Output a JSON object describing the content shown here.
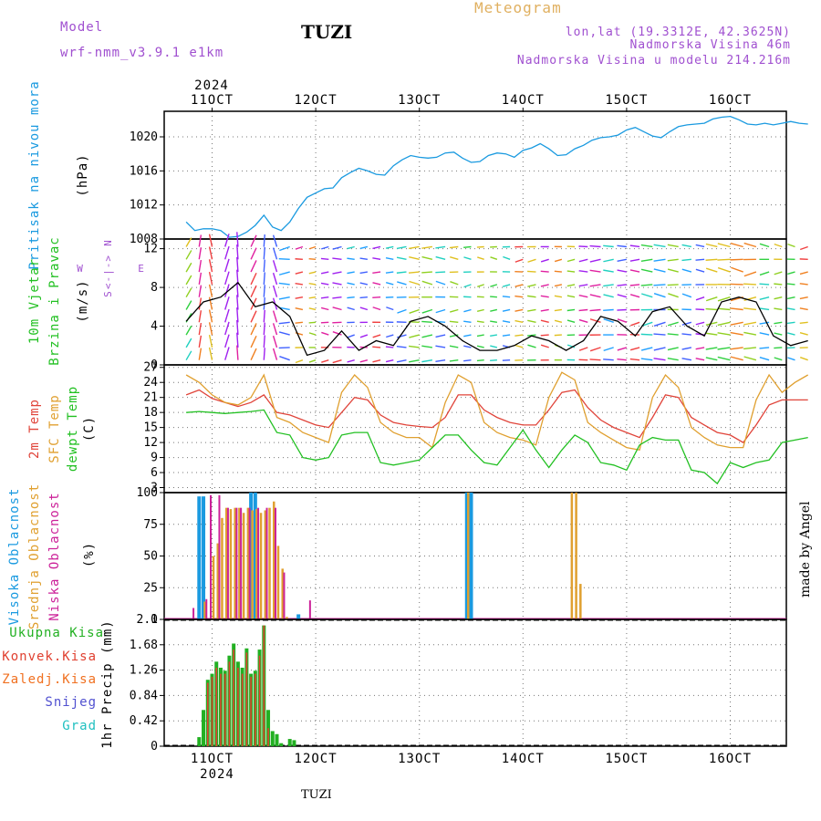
{
  "header": {
    "model_label": "Model",
    "model_name": "wrf-nmm_v3.9.1 e1km",
    "station": "TUZI",
    "meteogram": "Meteogram",
    "lonlat": "lon,lat (19.3312E, 42.3625N)",
    "alt": "Nadmorska Visina 46m",
    "alt_model": "Nadmorska Visina u modelu 214.216m",
    "footer_station": "TUZI",
    "watermark": "made by Angel"
  },
  "colors": {
    "pressure": "#1a9ae0",
    "temp2m": "#e0443a",
    "sfc": "#e0a030",
    "dew": "#22c022",
    "high": "#1a9ae0",
    "mid": "#e0a030",
    "low": "#cc2299",
    "total_precip": "#22b022",
    "conv_precip": "#e04030",
    "frozen": "#f07020",
    "snow": "#5050d0",
    "graupel": "#20c0c0",
    "model_label": "#a050d0"
  },
  "axis": {
    "year_top": "2024",
    "year_bottom": "2024",
    "date_labels": [
      "11OCT",
      "12OCT",
      "13OCT",
      "14OCT",
      "15OCT",
      "16OCT"
    ]
  },
  "panels": {
    "pressure": {
      "label": "Pritisak na nivou mora",
      "unit": "(hPa)",
      "ticks": [
        "1008",
        "1012",
        "1016",
        "1020"
      ]
    },
    "wind": {
      "label1": "10m Vjetar",
      "label2": "Brzina i Pravac",
      "unit": "(m/s)",
      "compass_w": "W",
      "compass_arrow": "<-|->",
      "compass_e": "E",
      "compass_n": "N",
      "compass_s": "S",
      "ticks": [
        "0",
        "4",
        "8",
        "12"
      ]
    },
    "temp": {
      "label_t2m": "2m Temp",
      "label_sfc": "SFC Temp",
      "label_dew": "dewpt Temp",
      "unit": "(C)",
      "ticks": [
        "3",
        "6",
        "9",
        "12",
        "15",
        "18",
        "21",
        "24",
        "27"
      ]
    },
    "cloud": {
      "label_high": "Visoka Oblacnost",
      "label_mid": "Srednja Oblacnost",
      "label_low": "Niska Oblacnost",
      "unit": "(%)",
      "ticks": [
        "0",
        "25",
        "50",
        "75",
        "100"
      ]
    },
    "precip": {
      "label_total": "Ukupna Kisa",
      "label_conv": "Konvek.Kisa",
      "label_frozen": "Zaledj.Kisa",
      "label_snow": "Snijeg",
      "label_grad": "Grad",
      "ylabel": "1hr Precip (mm)",
      "ticks": [
        "0",
        "0.42",
        "0.84",
        "1.26",
        "1.68",
        "2.1"
      ]
    }
  },
  "chart_data": [
    {
      "type": "line",
      "name": "pressure",
      "ylim": [
        1008,
        1023
      ],
      "xlim": [
        0,
        144
      ],
      "x": [
        0,
        2,
        4,
        6,
        8,
        10,
        12,
        14,
        16,
        18,
        20,
        22,
        24,
        26,
        28,
        30,
        32,
        34,
        36,
        38,
        40,
        42,
        44,
        46,
        48,
        50,
        52,
        54,
        56,
        58,
        60,
        62,
        64,
        66,
        68,
        70,
        72,
        74,
        76,
        78,
        80,
        82,
        84,
        86,
        88,
        90,
        92,
        94,
        96,
        98,
        100,
        102,
        104,
        106,
        108,
        110,
        112,
        114,
        116,
        118,
        120,
        122,
        124,
        126,
        128,
        130,
        132,
        134,
        136,
        138,
        140,
        142,
        144
      ],
      "values": [
        1010.0,
        1009.0,
        1009.2,
        1009.2,
        1009.0,
        1008.2,
        1008.3,
        1008.8,
        1009.6,
        1010.8,
        1009.4,
        1009.0,
        1010.0,
        1011.6,
        1012.9,
        1013.4,
        1013.9,
        1014.0,
        1015.2,
        1015.8,
        1016.3,
        1016.0,
        1015.6,
        1015.5,
        1016.6,
        1017.3,
        1017.8,
        1017.6,
        1017.5,
        1017.6,
        1018.1,
        1018.2,
        1017.5,
        1017.0,
        1017.1,
        1017.8,
        1018.1,
        1018.0,
        1017.6,
        1018.4,
        1018.7,
        1019.2,
        1018.6,
        1017.8,
        1017.9,
        1018.6,
        1019.0,
        1019.6,
        1019.9,
        1020.0,
        1020.2,
        1020.8,
        1021.1,
        1020.6,
        1020.1,
        1019.9,
        1020.6,
        1021.2,
        1021.4,
        1021.5,
        1021.6,
        1022.1,
        1022.3,
        1022.4,
        1022.0,
        1021.5,
        1021.4,
        1021.6,
        1021.4,
        1021.6,
        1021.8,
        1021.6,
        1021.5
      ]
    },
    {
      "type": "line",
      "name": "wind",
      "ylim": [
        0,
        13
      ],
      "xlim": [
        0,
        144
      ],
      "x": [
        0,
        4,
        8,
        12,
        16,
        20,
        24,
        28,
        32,
        36,
        40,
        44,
        48,
        52,
        56,
        60,
        64,
        68,
        72,
        76,
        80,
        84,
        88,
        92,
        96,
        100,
        104,
        108,
        112,
        116,
        120,
        124,
        128,
        132,
        136,
        140,
        144
      ],
      "values": [
        4.5,
        6.5,
        7.0,
        8.5,
        6.0,
        6.5,
        5.0,
        1.0,
        1.5,
        3.5,
        1.5,
        2.5,
        2.0,
        4.5,
        5.0,
        4.0,
        2.5,
        1.5,
        1.5,
        2.0,
        3.0,
        2.5,
        1.5,
        2.5,
        5.0,
        4.5,
        3.0,
        5.5,
        6.0,
        4.0,
        3.0,
        6.5,
        7.0,
        6.5,
        3.0,
        2.0,
        2.5
      ]
    },
    {
      "type": "line",
      "name": "temperature",
      "ylim": [
        2,
        27.5
      ],
      "xlim": [
        0,
        144
      ],
      "x": [
        0,
        3,
        6,
        9,
        12,
        15,
        18,
        21,
        24,
        27,
        30,
        33,
        36,
        39,
        42,
        45,
        48,
        51,
        54,
        57,
        60,
        63,
        66,
        69,
        72,
        75,
        78,
        81,
        84,
        87,
        90,
        93,
        96,
        99,
        102,
        105,
        108,
        111,
        114,
        117,
        120,
        123,
        126,
        129,
        132,
        135,
        138,
        141,
        144
      ],
      "series": [
        {
          "name": "2m Temp",
          "values": [
            21.5,
            22.5,
            20.8,
            20.0,
            19.2,
            20.0,
            21.5,
            18.0,
            17.5,
            16.5,
            15.5,
            15.0,
            18.0,
            21.0,
            20.5,
            17.5,
            16.0,
            15.5,
            15.2,
            15.0,
            17.0,
            21.5,
            21.5,
            18.5,
            17.0,
            16.0,
            15.5,
            15.5,
            18.5,
            22.0,
            22.5,
            19.0,
            16.5,
            15.0,
            14.0,
            13.0,
            17.0,
            21.5,
            21.0,
            17.0,
            15.5,
            14.0,
            13.5,
            12.0,
            15.5,
            19.5,
            20.5,
            20.5,
            20.5
          ]
        },
        {
          "name": "SFC Temp",
          "values": [
            25.5,
            24.0,
            21.5,
            20.0,
            19.5,
            21.0,
            25.5,
            17.0,
            16.0,
            14.0,
            13.0,
            12.0,
            22.0,
            25.5,
            23.0,
            16.0,
            14.0,
            13.0,
            13.0,
            11.0,
            20.0,
            25.5,
            24.0,
            16.0,
            14.0,
            13.0,
            12.5,
            11.5,
            21.0,
            26.0,
            24.5,
            16.0,
            14.0,
            12.5,
            11.0,
            10.5,
            21.0,
            25.5,
            23.0,
            15.0,
            13.0,
            11.5,
            11.0,
            11.0,
            20.5,
            25.5,
            22.0,
            24.0,
            25.5
          ]
        },
        {
          "name": "dewpt Temp",
          "values": [
            18.0,
            18.2,
            18.0,
            17.8,
            18.0,
            18.2,
            18.5,
            14.0,
            13.5,
            9.0,
            8.5,
            9.0,
            13.5,
            14.0,
            14.0,
            8.0,
            7.5,
            8.0,
            8.5,
            11.0,
            13.5,
            13.5,
            10.5,
            8.0,
            7.5,
            11.0,
            14.5,
            10.5,
            7.0,
            10.5,
            13.5,
            12.0,
            8.0,
            7.5,
            6.5,
            11.5,
            13.0,
            12.5,
            12.5,
            6.5,
            6.0,
            3.8,
            8.0,
            7.0,
            8.0,
            8.5,
            12.0,
            12.5,
            13.0
          ]
        }
      ]
    },
    {
      "type": "bar",
      "name": "cloud cover",
      "ylim": [
        0,
        100
      ],
      "xlim": [
        0,
        144
      ],
      "series": [
        {
          "name": "Visoka Oblacnost",
          "x": [
            3,
            4,
            15,
            16,
            26,
            65,
            66
          ],
          "values": [
            97,
            97,
            100,
            100,
            4,
            100,
            100
          ]
        },
        {
          "name": "Srednja Oblacnost",
          "x": [
            4,
            6,
            7,
            8,
            9,
            10,
            11,
            12,
            13,
            14,
            15,
            16,
            17,
            18,
            19,
            20,
            21,
            22,
            23,
            65,
            89,
            90,
            91
          ],
          "values": [
            14,
            50,
            60,
            80,
            88,
            87,
            88,
            88,
            84,
            88,
            86,
            87,
            84,
            86,
            88,
            93,
            58,
            40,
            2,
            100,
            100,
            100,
            28
          ]
        },
        {
          "name": "Niska Oblacnost",
          "x": [
            2,
            5,
            6,
            8,
            10,
            12,
            13,
            15,
            17,
            19,
            21,
            23,
            29
          ],
          "values": [
            9,
            16,
            98,
            98,
            88,
            88,
            88,
            88,
            88,
            88,
            88,
            37,
            15
          ]
        }
      ]
    },
    {
      "type": "bar",
      "name": "precipitation",
      "ylim": [
        0,
        2.1
      ],
      "xlim": [
        0,
        144
      ],
      "series": [
        {
          "name": "Ukupna Kisa",
          "x": [
            3,
            4,
            5,
            6,
            7,
            8,
            9,
            10,
            11,
            12,
            13,
            14,
            15,
            16,
            17,
            18,
            19,
            20,
            21,
            22,
            23,
            24,
            25,
            26
          ],
          "values": [
            0.15,
            0.6,
            1.1,
            1.2,
            1.4,
            1.3,
            1.25,
            1.5,
            1.7,
            1.4,
            1.3,
            1.62,
            1.2,
            1.25,
            1.6,
            2.0,
            0.6,
            0.25,
            0.2,
            0.05,
            0.0,
            0.12,
            0.1,
            0.0
          ]
        },
        {
          "name": "Konvek.Kisa",
          "x": [
            5,
            6,
            7,
            8,
            9,
            10,
            11,
            12,
            13,
            14,
            15,
            16,
            17,
            18,
            19
          ],
          "values": [
            1.05,
            1.15,
            1.3,
            1.2,
            1.2,
            1.4,
            1.6,
            1.3,
            1.2,
            1.55,
            1.15,
            1.2,
            1.5,
            2.0,
            0.3
          ]
        }
      ]
    }
  ]
}
